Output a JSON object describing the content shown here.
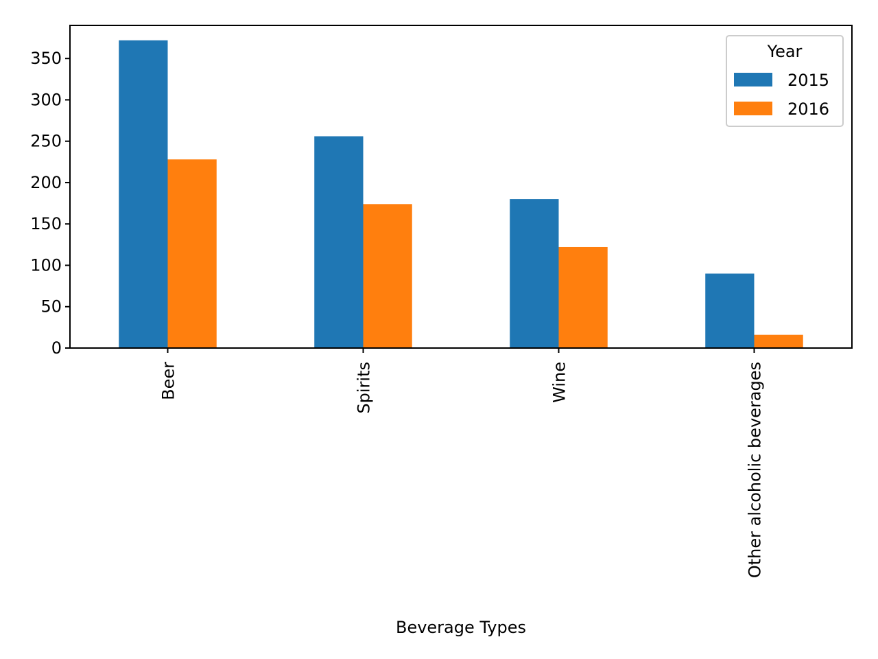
{
  "chart_data": {
    "type": "bar",
    "title": "",
    "xlabel": "Beverage Types",
    "ylabel": "",
    "categories": [
      "Beer",
      "Spirits",
      "Wine",
      "Other alcoholic beverages"
    ],
    "series": [
      {
        "name": "2015",
        "values": [
          372,
          256,
          180,
          90
        ],
        "color": "#1f77b4"
      },
      {
        "name": "2016",
        "values": [
          228,
          174,
          122,
          16
        ],
        "color": "#ff7f0e"
      }
    ],
    "ylim": [
      0,
      390
    ],
    "yticks": [
      0,
      50,
      100,
      150,
      200,
      250,
      300,
      350
    ],
    "legend": {
      "title": "Year",
      "placement": "top-right"
    },
    "grid": false
  }
}
